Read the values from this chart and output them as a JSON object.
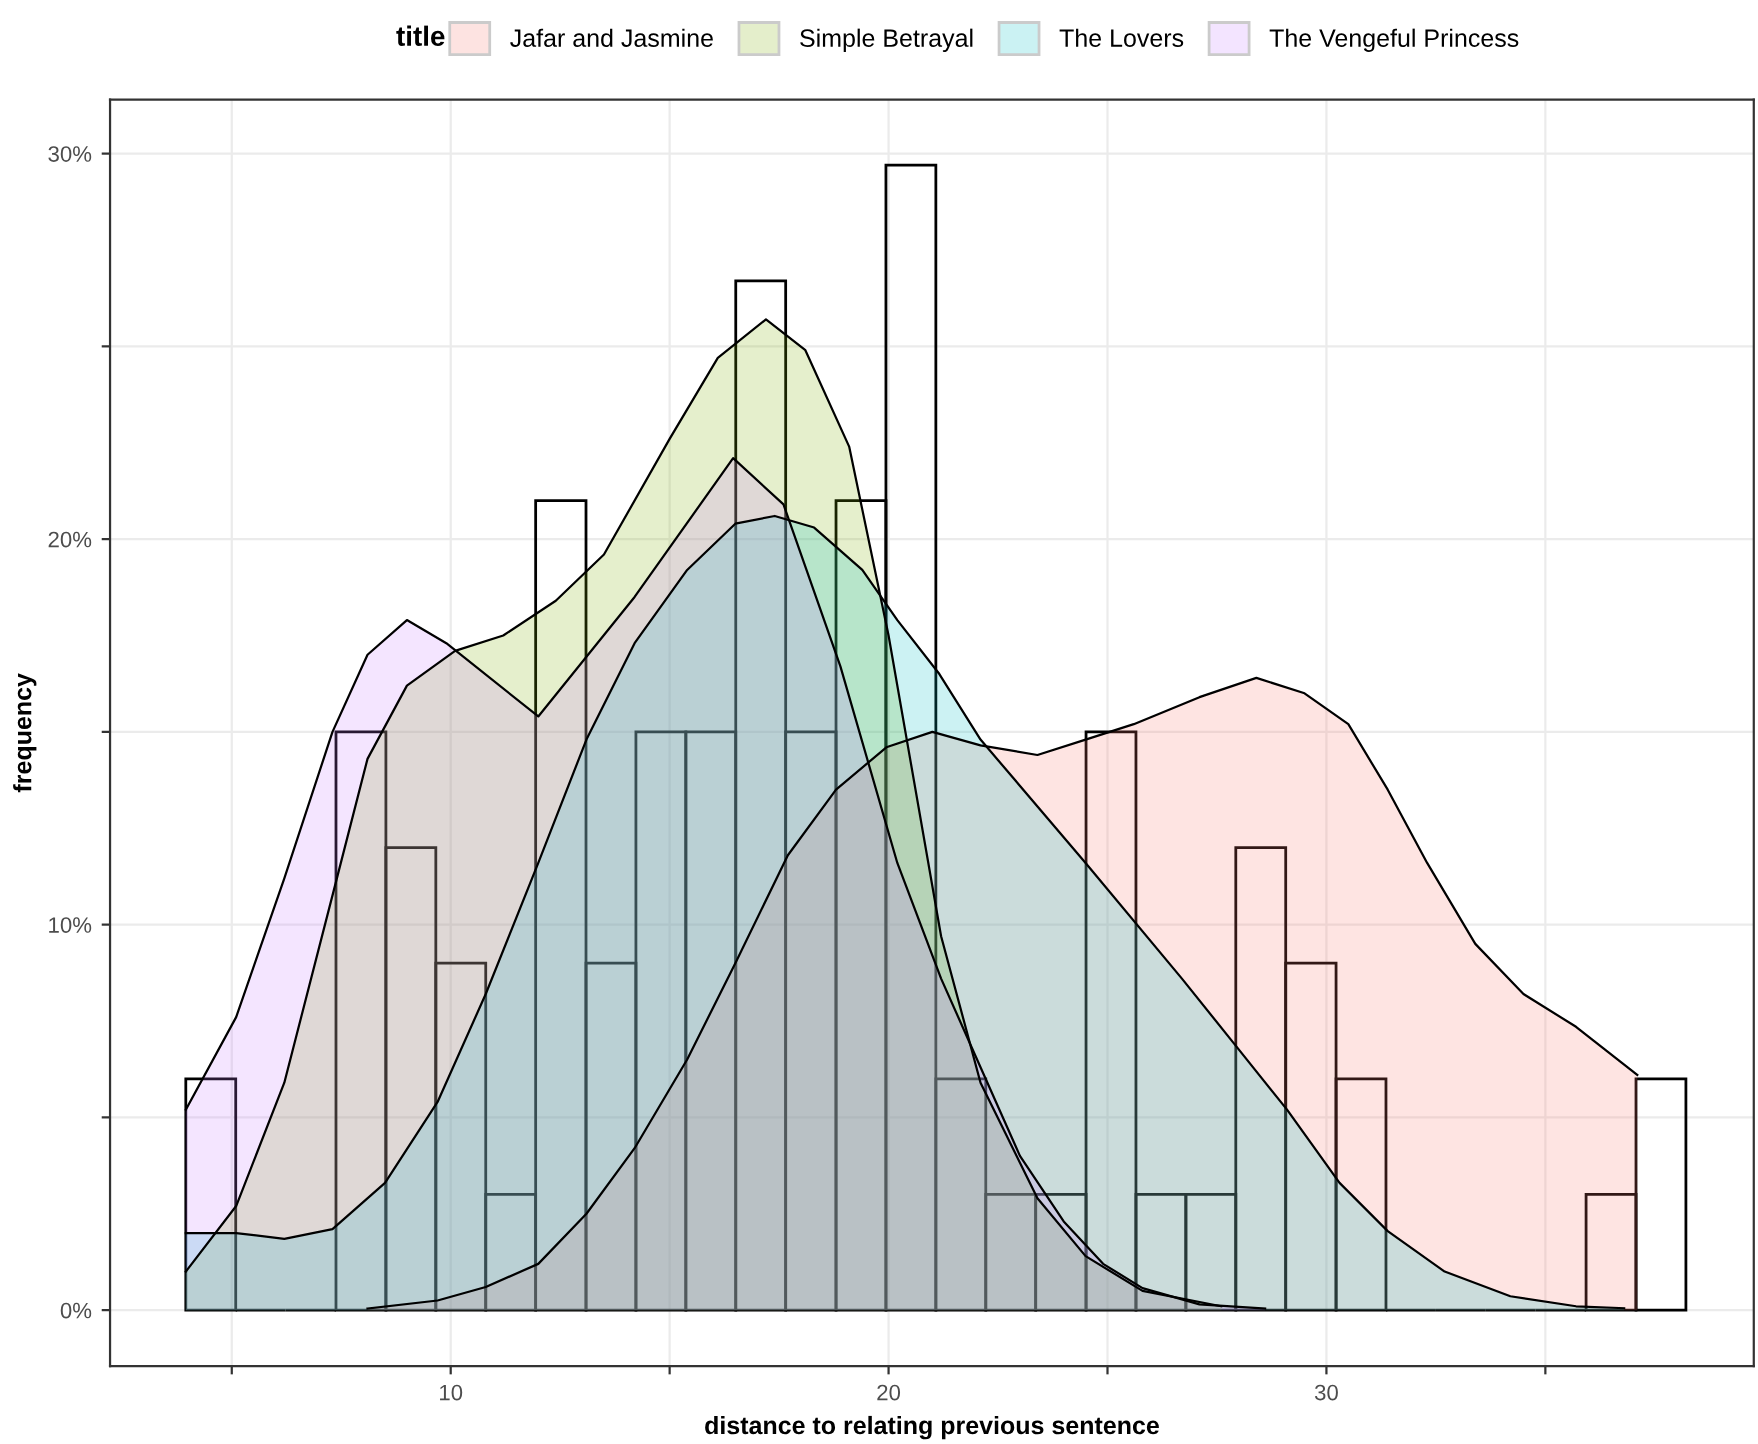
{
  "chart_data": {
    "type": "histogram",
    "xlabel": "distance to relating previous sentence",
    "ylabel": "frequency",
    "legend_title": "title",
    "legend": "top",
    "bins": [
      3.95,
      5.09,
      6.23,
      7.38,
      8.52,
      9.66,
      10.8,
      11.94,
      13.09,
      14.23,
      15.37,
      16.51,
      17.65,
      18.8,
      19.94,
      21.08,
      22.22,
      23.36,
      24.51,
      25.65,
      26.79,
      27.93,
      29.07,
      30.22,
      31.36,
      32.5,
      33.64,
      34.78,
      35.93,
      37.07,
      38.21
    ],
    "values": [
      6,
      0,
      0,
      15,
      12,
      9,
      3,
      21,
      9,
      15,
      15,
      26.7,
      15,
      21,
      29.7,
      6,
      3,
      3,
      15,
      3,
      3,
      12,
      9,
      6,
      0,
      0,
      0,
      0,
      3,
      6
    ],
    "series": [
      {
        "type": "area",
        "name": "Jafar and Jasmine",
        "color": "#F8766D",
        "x": [
          8.1,
          9.7,
          10.8,
          12.0,
          13.1,
          14.2,
          15.4,
          16.5,
          17.7,
          18.8,
          19.95,
          21.0,
          22.1,
          23.4,
          24.5,
          25.6,
          27.1,
          28.4,
          29.5,
          30.5,
          31.4,
          32.3,
          33.4,
          34.5,
          35.7,
          37.1
        ],
        "values": [
          0.04,
          0.25,
          0.6,
          1.2,
          2.5,
          4.2,
          6.5,
          9.0,
          11.8,
          13.5,
          14.6,
          15.0,
          14.65,
          14.4,
          14.8,
          15.2,
          15.9,
          16.4,
          16.0,
          15.2,
          13.5,
          11.6,
          9.5,
          8.2,
          7.35,
          6.1
        ]
      },
      {
        "type": "area",
        "name": "Simple Betrayal",
        "color": "#7CAE00",
        "x": [
          3.95,
          5.1,
          6.2,
          7.4,
          8.1,
          9.0,
          10.1,
          11.2,
          12.4,
          13.5,
          15.0,
          16.1,
          17.2,
          18.1,
          19.1,
          20.0,
          21.2,
          22.1,
          23.4,
          24.5,
          25.8,
          27.6
        ],
        "values": [
          1.0,
          2.7,
          5.9,
          11.2,
          14.3,
          16.2,
          17.1,
          17.5,
          18.4,
          19.6,
          22.6,
          24.7,
          25.7,
          24.9,
          22.4,
          17.5,
          9.7,
          5.9,
          2.9,
          1.4,
          0.5,
          0.1
        ]
      },
      {
        "type": "area",
        "name": "The Lovers",
        "color": "#00BFC4",
        "x": [
          3.95,
          5.1,
          6.2,
          7.3,
          8.5,
          9.7,
          10.8,
          12.0,
          13.1,
          14.2,
          15.4,
          16.5,
          17.4,
          18.3,
          19.4,
          20.2,
          21.16,
          22.1,
          24.5,
          26.7,
          27.9,
          29.1,
          30.3,
          31.4,
          32.7,
          34.2,
          35.7,
          36.8
        ],
        "values": [
          2.0,
          2.0,
          1.85,
          2.1,
          3.3,
          5.4,
          8.2,
          11.6,
          14.8,
          17.3,
          19.2,
          20.4,
          20.6,
          20.3,
          19.2,
          17.9,
          16.5,
          14.8,
          11.6,
          8.6,
          6.9,
          5.2,
          3.3,
          2.05,
          1.0,
          0.36,
          0.1,
          0.05
        ]
      },
      {
        "type": "area",
        "name": "The Vengeful Princess",
        "color": "#C77CFF",
        "x": [
          3.95,
          5.1,
          6.2,
          7.3,
          8.1,
          9.0,
          9.9,
          12.0,
          14.2,
          16.45,
          17.6,
          18.9,
          20.2,
          21.2,
          22.1,
          23.0,
          24.0,
          24.9,
          25.8,
          27.1,
          28.6
        ],
        "values": [
          5.2,
          7.6,
          11.2,
          15.0,
          17.0,
          17.9,
          17.3,
          15.4,
          18.5,
          22.1,
          20.9,
          16.7,
          11.6,
          8.6,
          6.3,
          4.0,
          2.3,
          1.2,
          0.57,
          0.15,
          0.04
        ]
      }
    ],
    "xlim": [
      2.22,
      39.76
    ],
    "xticks": [
      {
        "value": 5,
        "label": null
      },
      10,
      {
        "value": 15,
        "label": null
      },
      20,
      {
        "value": 25,
        "label": null
      },
      30,
      {
        "value": 35,
        "label": null
      }
    ],
    "ylim": [
      -1.45,
      31.4
    ],
    "yticks": [
      {
        "value": 0,
        "label": "0%"
      },
      {
        "value": 5,
        "label": null
      },
      {
        "value": 10,
        "label": "10%"
      },
      {
        "value": 15,
        "label": null
      },
      {
        "value": 20,
        "label": "20%"
      },
      {
        "value": 25,
        "label": null
      },
      {
        "value": 30,
        "label": "30%"
      }
    ],
    "grid": true
  }
}
